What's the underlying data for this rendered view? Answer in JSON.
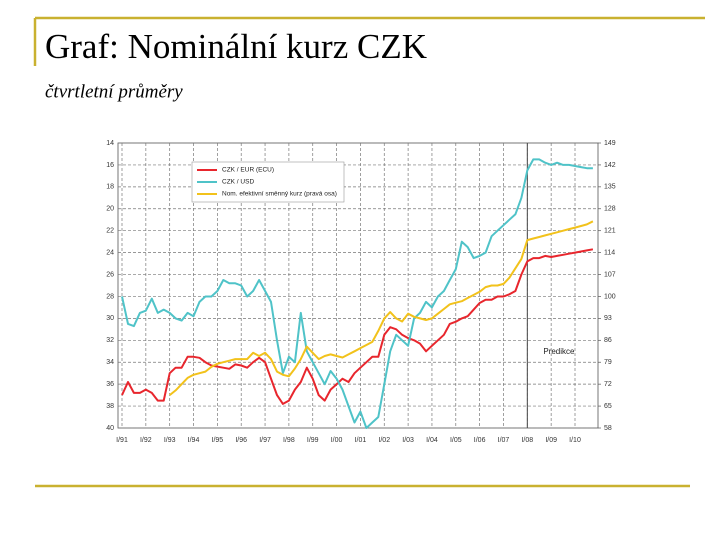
{
  "title": "Graf: Nominální kurz CZK",
  "subtitle": "čtvrtletní průměry",
  "chart_data": {
    "type": "line",
    "categories": [
      "I/91",
      null,
      null,
      null,
      "I/92",
      null,
      null,
      null,
      "I/93",
      null,
      null,
      null,
      "I/94",
      null,
      null,
      null,
      "I/95",
      null,
      null,
      null,
      "I/96",
      null,
      null,
      null,
      "I/97",
      null,
      null,
      null,
      "I/98",
      null,
      null,
      null,
      "I/99",
      null,
      null,
      null,
      "I/00",
      null,
      null,
      null,
      "I/01",
      null,
      null,
      null,
      "I/02",
      null,
      null,
      null,
      "I/03",
      null,
      null,
      null,
      "I/04",
      null,
      null,
      null,
      "I/05",
      null,
      null,
      null,
      "I/06",
      null,
      null,
      null,
      "I/07",
      null,
      null,
      null,
      "I/08",
      null,
      null,
      null,
      "I/09",
      null,
      null,
      null,
      "I/10",
      null,
      null,
      null
    ],
    "series": [
      {
        "name": "CZK / EUR (ECU)",
        "color": "#e8262d",
        "axis": "y",
        "values": [
          37,
          35.8,
          36.8,
          36.8,
          36.5,
          36.8,
          37.5,
          37.5,
          35,
          34.5,
          34.5,
          33.5,
          33.5,
          33.6,
          34,
          34.3,
          34.4,
          34.5,
          34.6,
          34.2,
          34.3,
          34.5,
          34,
          33.6,
          34,
          35.5,
          37,
          37.8,
          37.5,
          36.5,
          35.8,
          34.5,
          35.5,
          37,
          37.5,
          36.5,
          36,
          35.5,
          35.8,
          35,
          34.5,
          34,
          33.5,
          33.5,
          31.5,
          30.8,
          31,
          31.5,
          31.8,
          32,
          32.3,
          33,
          32.5,
          32,
          31.5,
          30.5,
          30.3,
          30,
          29.8,
          29.2,
          28.6,
          28.3,
          28.3,
          28,
          28,
          27.8,
          27.5,
          26,
          24.8,
          24.5,
          24.5,
          24.3,
          24.4,
          24.3,
          24.2,
          24.1,
          24,
          23.9,
          23.8,
          23.7
        ]
      },
      {
        "name": "CZK / USD",
        "color": "#4fc3c8",
        "axis": "y",
        "values": [
          28,
          30.5,
          30.7,
          29.5,
          29.3,
          28.2,
          29.5,
          29.2,
          29.5,
          30,
          30.2,
          29.5,
          29.8,
          28.5,
          28,
          28,
          27.5,
          26.5,
          26.8,
          26.8,
          27,
          28,
          27.5,
          26.5,
          27.5,
          28.5,
          32,
          35,
          33.5,
          34,
          29.5,
          33,
          34,
          35,
          36,
          34.8,
          35.5,
          36.5,
          38,
          39.5,
          38.5,
          40,
          39.5,
          39,
          36,
          33,
          31.5,
          32,
          32.5,
          30,
          29.5,
          28.5,
          29,
          28,
          27.5,
          26.5,
          25.5,
          23,
          23.5,
          24.5,
          24.3,
          24,
          22.5,
          22,
          21.5,
          21,
          20.5,
          19,
          16.5,
          15.5,
          15.5,
          15.8,
          16,
          15.8,
          16,
          16,
          16.1,
          16.2,
          16.3,
          16.3
        ]
      },
      {
        "name": "Nom. efektivní směnný kurz (pravá osa)",
        "color": "#f2c21b",
        "axis": "y2",
        "values": [
          null,
          null,
          null,
          null,
          null,
          null,
          null,
          null,
          68.5,
          70,
          72,
          74,
          75,
          75.5,
          76,
          77.5,
          78.5,
          79,
          79.5,
          80,
          80,
          80,
          82,
          81,
          82,
          80,
          76,
          75,
          74.5,
          77,
          80,
          84,
          82,
          80,
          81,
          81.5,
          81,
          80.5,
          81.5,
          82.5,
          83.5,
          84.5,
          85.5,
          89,
          93,
          95,
          93,
          92,
          94.5,
          93.5,
          93,
          92.5,
          93,
          94.5,
          96,
          97.5,
          98,
          98.5,
          99.5,
          100.5,
          101.5,
          103,
          103.5,
          103.5,
          104,
          106,
          109,
          112,
          118,
          118.5,
          119,
          119.5,
          120,
          120.5,
          121,
          121.5,
          122,
          122.5,
          123,
          124
        ]
      }
    ],
    "ylim": [
      14,
      40
    ],
    "y_inverted": true,
    "yticks": [
      14,
      16,
      18,
      20,
      22,
      24,
      26,
      28,
      30,
      32,
      34,
      36,
      38,
      40
    ],
    "y2lim": [
      58,
      149
    ],
    "y2ticks": [
      58,
      65,
      72,
      79,
      86,
      93,
      100,
      107,
      114,
      121,
      128,
      135,
      142,
      149
    ],
    "grid": true,
    "legend": "upper left",
    "annotation": "Predikce"
  }
}
